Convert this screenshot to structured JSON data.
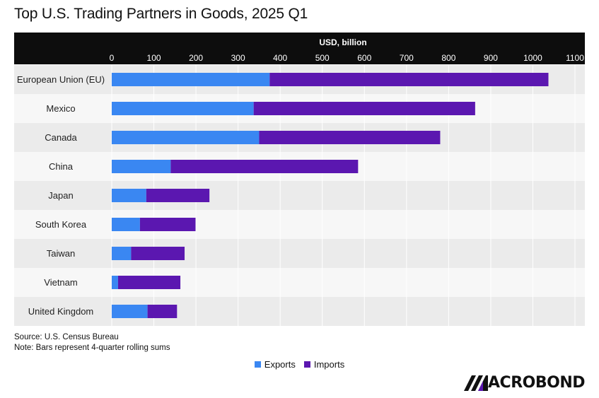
{
  "header": {
    "title": "Top U.S. Trading Partners in Goods, 2025 Q1"
  },
  "chart_data": {
    "type": "bar",
    "orientation": "horizontal",
    "stacked": true,
    "title": "Top U.S. Trading Partners in Goods, 2025 Q1",
    "xlabel": "USD, billion",
    "xlim": [
      0,
      1100
    ],
    "xticks": [
      0,
      100,
      200,
      300,
      400,
      500,
      600,
      700,
      800,
      900,
      1000,
      1100
    ],
    "xtick_labels": [
      "0",
      "100",
      "200",
      "300",
      "400",
      "500",
      "600",
      "700",
      "800",
      "900",
      "1000",
      "1100"
    ],
    "grid": true,
    "axis_position": "top",
    "legend_position": "bottom-center",
    "categories": [
      "European Union (EU)",
      "Mexico",
      "Canada",
      "China",
      "Japan",
      "South Korea",
      "Taiwan",
      "Vietnam",
      "United Kingdom"
    ],
    "series": [
      {
        "name": "Exports",
        "color": "#3a87f2",
        "values": [
          375,
          337,
          350,
          140,
          82,
          67,
          46,
          15,
          85
        ]
      },
      {
        "name": "Imports",
        "color": "#5b17b0",
        "values": [
          662,
          526,
          430,
          445,
          150,
          132,
          127,
          148,
          70
        ]
      }
    ]
  },
  "footer": {
    "source": "Source: U.S. Census Bureau",
    "note": "Note: Bars represent 4-quarter rolling sums"
  },
  "branding": {
    "logo_icon": "macrobond-m-icon",
    "logo_text": "ACROBOND"
  }
}
